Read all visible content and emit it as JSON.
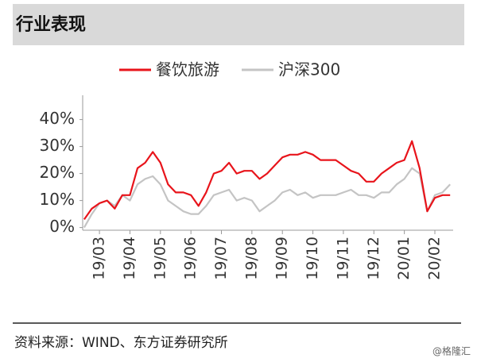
{
  "header": {
    "title": "行业表现"
  },
  "chart_data": {
    "type": "line",
    "x": [
      -0.5,
      -0.25,
      0,
      0.25,
      0.5,
      0.75,
      1,
      1.25,
      1.5,
      1.75,
      2,
      2.25,
      2.5,
      2.75,
      3,
      3.25,
      3.5,
      3.75,
      4,
      4.25,
      4.5,
      4.75,
      5,
      5.25,
      5.5,
      5.75,
      6,
      6.25,
      6.5,
      6.75,
      7,
      7.25,
      7.5,
      7.75,
      8,
      8.25,
      8.5,
      8.75,
      9,
      9.25,
      9.5,
      9.75,
      10,
      10.25,
      10.5,
      10.75,
      11,
      11.25,
      11.5
    ],
    "series": [
      {
        "name": "餐饮旅游",
        "color": "#e8141b",
        "values": [
          3,
          7,
          9,
          10,
          7,
          12,
          12,
          22,
          24,
          28,
          24,
          16,
          13,
          13,
          12,
          8,
          13,
          20,
          21,
          24,
          20,
          21,
          21,
          18,
          20,
          23,
          26,
          27,
          27,
          28,
          27,
          25,
          25,
          25,
          23,
          21,
          20,
          17,
          17,
          20,
          22,
          24,
          25,
          32,
          22,
          6,
          11,
          12,
          12
        ]
      },
      {
        "name": "沪深300",
        "color": "#c4c4c4",
        "values": [
          0,
          5,
          9,
          10,
          8,
          12,
          10,
          16,
          18,
          19,
          16,
          10,
          8,
          6,
          5,
          5,
          8,
          12,
          13,
          14,
          10,
          11,
          10,
          6,
          8,
          10,
          13,
          14,
          12,
          13,
          11,
          12,
          12,
          12,
          13,
          14,
          12,
          12,
          11,
          13,
          13,
          16,
          18,
          22,
          20,
          6,
          12,
          13,
          16
        ]
      }
    ],
    "xlim": [
      -0.55,
      11.6
    ],
    "xticks": [
      {
        "value": 0,
        "label": "19/03"
      },
      {
        "value": 1,
        "label": "19/04"
      },
      {
        "value": 2,
        "label": "19/05"
      },
      {
        "value": 3,
        "label": "19/06"
      },
      {
        "value": 4,
        "label": "19/07"
      },
      {
        "value": 5,
        "label": "19/08"
      },
      {
        "value": 6,
        "label": "19/09"
      },
      {
        "value": 7,
        "label": "19/10"
      },
      {
        "value": 8,
        "label": "19/11"
      },
      {
        "value": 9,
        "label": "19/12"
      },
      {
        "value": 10,
        "label": "20/01"
      },
      {
        "value": 11,
        "label": "20/02"
      }
    ],
    "ylim": [
      -1,
      49
    ],
    "yticks": [
      {
        "value": 0,
        "label": "0%"
      },
      {
        "value": 10,
        "label": "10%"
      },
      {
        "value": 20,
        "label": "20%"
      },
      {
        "value": 30,
        "label": "30%"
      },
      {
        "value": 40,
        "label": "40%"
      }
    ]
  },
  "source": "资料来源：WIND、东方证券研究所",
  "watermark": "@格隆汇"
}
